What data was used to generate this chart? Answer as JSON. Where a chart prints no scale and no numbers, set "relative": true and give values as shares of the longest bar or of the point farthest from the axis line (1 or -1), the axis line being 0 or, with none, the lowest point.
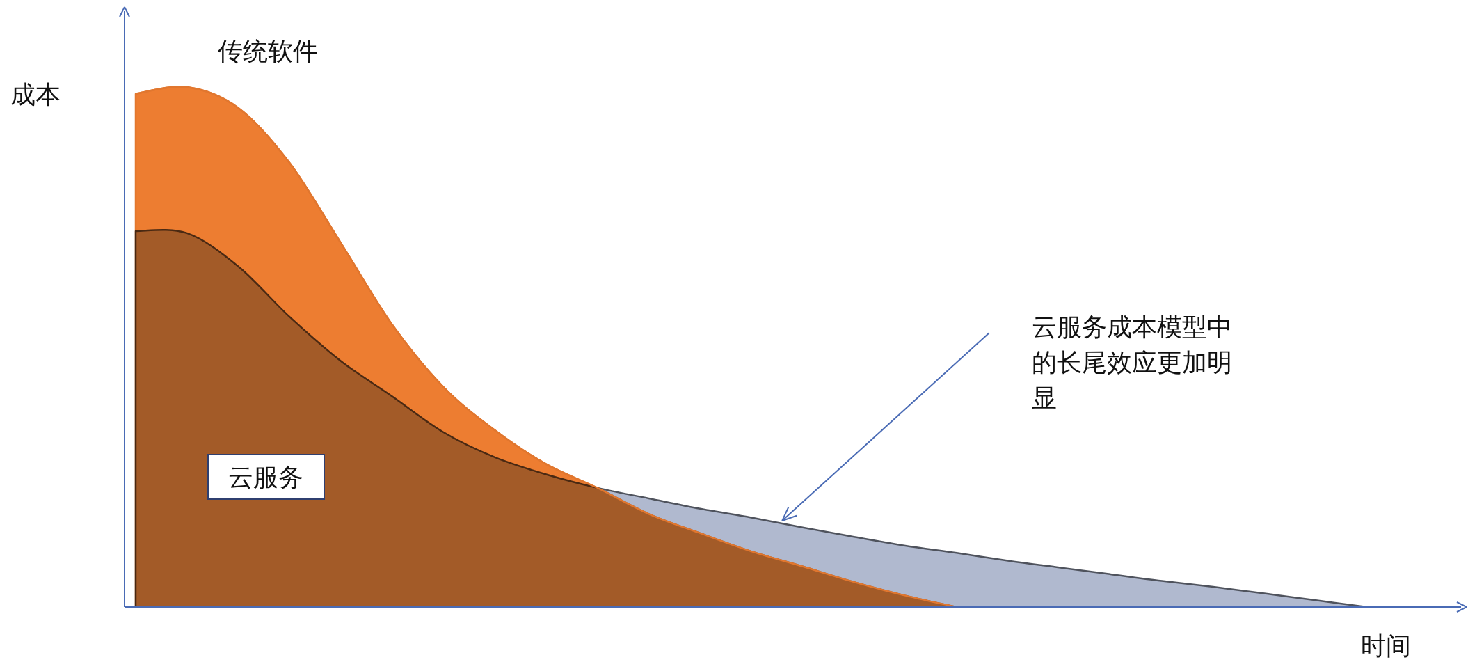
{
  "chart_data": {
    "type": "area",
    "relative": true,
    "xlabel": "时间",
    "ylabel": "成本",
    "categories": [
      null,
      null,
      null,
      null,
      null,
      null,
      null,
      null,
      null,
      null,
      null,
      null,
      null,
      null,
      null,
      null,
      null,
      null,
      null,
      null,
      null,
      null,
      null,
      null,
      null
    ],
    "series": [
      {
        "name": "云服务",
        "color": "#b0b9cf",
        "values": [
          0.723,
          0.719,
          0.655,
          0.558,
          0.473,
          0.405,
          0.336,
          0.288,
          0.255,
          0.229,
          0.209,
          0.189,
          0.172,
          0.153,
          0.135,
          0.118,
          0.104,
          0.089,
          0.076,
          0.063,
          0.05,
          0.039,
          0.026,
          0.013,
          0
        ]
      },
      {
        "name": "传统软件",
        "color": "#ed7d31",
        "values": [
          0.987,
          1,
          0.96,
          0.854,
          0.7,
          0.543,
          0.423,
          0.34,
          0.275,
          0.229,
          0.179,
          0.142,
          0.107,
          0.078,
          0.048,
          0.022,
          0,
          null,
          null,
          null,
          null,
          null,
          null,
          null,
          null
        ]
      }
    ],
    "annotations": [
      "云服务成本模型中的长尾效应更加明显"
    ]
  }
}
